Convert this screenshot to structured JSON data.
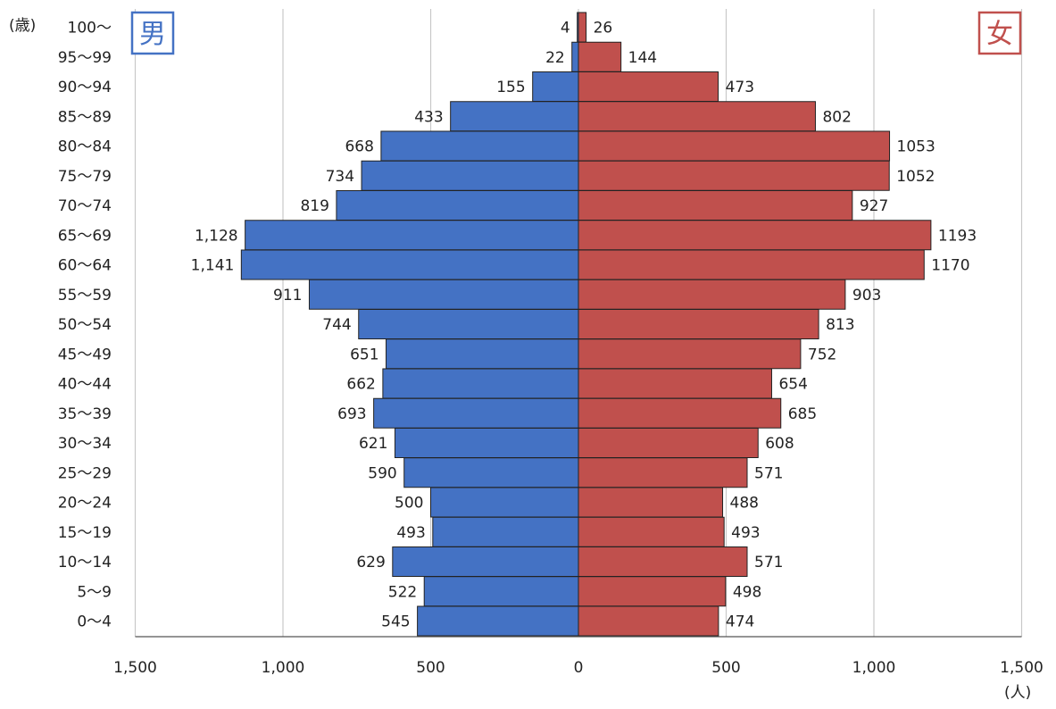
{
  "chart_data": {
    "type": "bar",
    "subtype": "population-pyramid",
    "title": "",
    "ylabel": "(歳)",
    "xlabel": "(人)",
    "xlim": [
      -1500,
      1500
    ],
    "xticks": [
      -1500,
      -1000,
      -500,
      0,
      500,
      1000,
      1500
    ],
    "xtick_labels": [
      "1,500",
      "1,000",
      "500",
      "0",
      "500",
      "1,000",
      "1,500"
    ],
    "grid": true,
    "categories": [
      "100〜",
      "95〜99",
      "90〜94",
      "85〜89",
      "80〜84",
      "75〜79",
      "70〜74",
      "65〜69",
      "60〜64",
      "55〜59",
      "50〜54",
      "45〜49",
      "40〜44",
      "35〜39",
      "30〜34",
      "25〜29",
      "20〜24",
      "15〜19",
      "10〜14",
      "5〜9",
      "0〜4"
    ],
    "series": [
      {
        "name": "男",
        "color": "#4472c4",
        "side": "left",
        "values": [
          4,
          22,
          155,
          433,
          668,
          734,
          819,
          1128,
          1141,
          911,
          744,
          651,
          662,
          693,
          621,
          590,
          500,
          493,
          629,
          522,
          545
        ],
        "value_labels": [
          "4",
          "22",
          "155",
          "433",
          "668",
          "734",
          "819",
          "1,128",
          "1,141",
          "911",
          "744",
          "651",
          "662",
          "693",
          "621",
          "590",
          "500",
          "493",
          "629",
          "522",
          "545"
        ]
      },
      {
        "name": "女",
        "color": "#c0504d",
        "side": "right",
        "values": [
          26,
          144,
          473,
          802,
          1053,
          1052,
          927,
          1193,
          1170,
          903,
          813,
          752,
          654,
          685,
          608,
          571,
          488,
          493,
          571,
          498,
          474
        ],
        "value_labels": [
          "26",
          "144",
          "473",
          "802",
          "1053",
          "1052",
          "927",
          "1193",
          "1170",
          "903",
          "813",
          "752",
          "654",
          "685",
          "608",
          "571",
          "488",
          "493",
          "571",
          "498",
          "474"
        ]
      }
    ]
  }
}
